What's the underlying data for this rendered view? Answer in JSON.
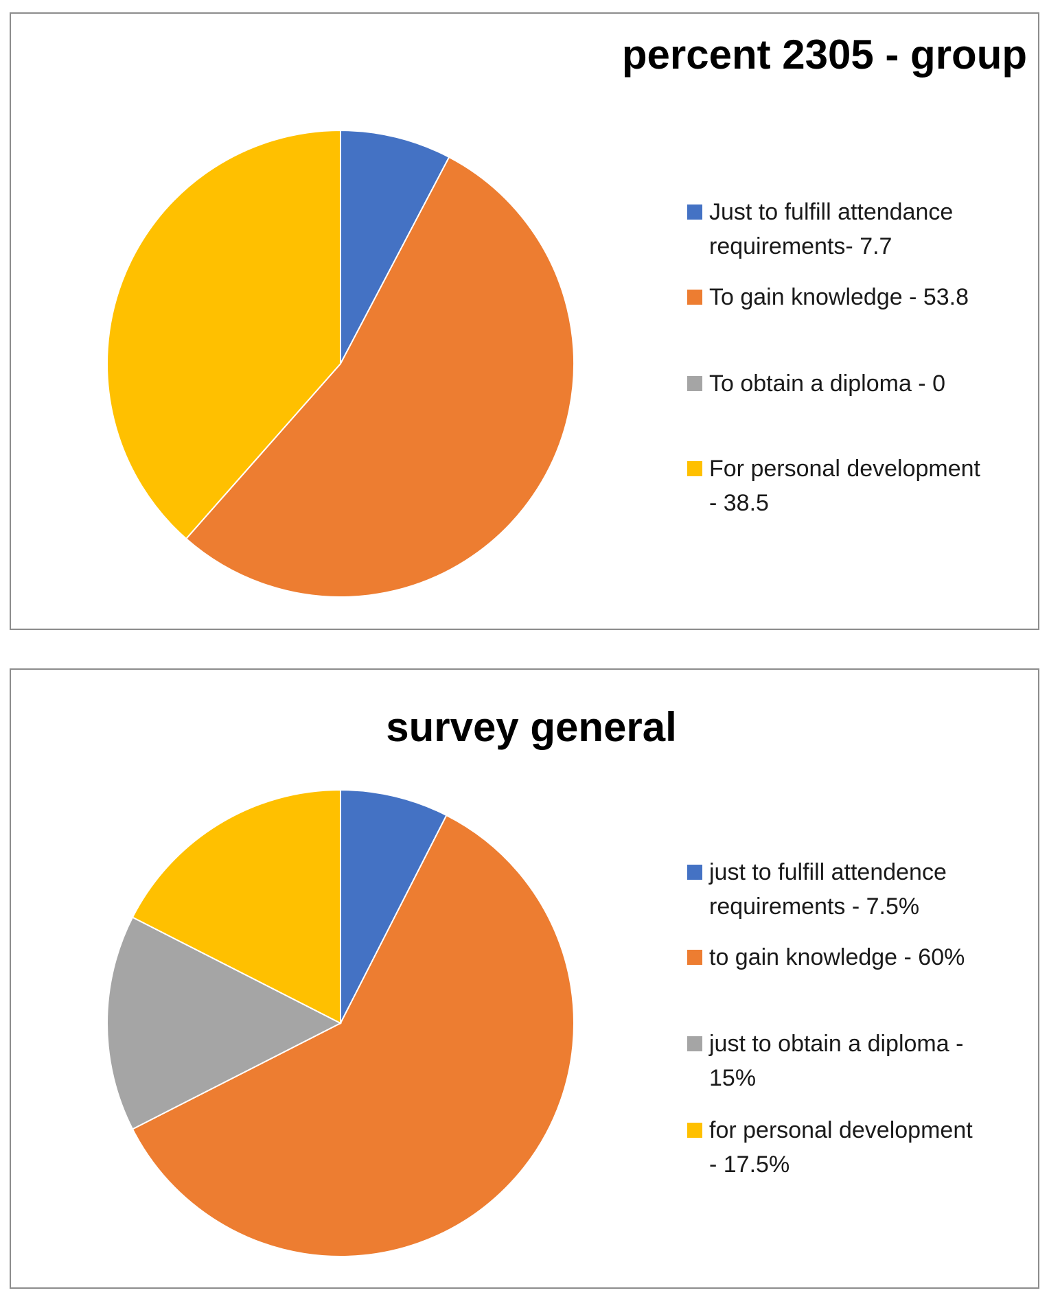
{
  "chart_data": [
    {
      "type": "pie",
      "title": "percent 2305 - group",
      "title_align": "right",
      "categories": [
        "Just to fulfill attendance requirements",
        "To gain knowledge",
        "To obtain a diploma",
        "For personal development"
      ],
      "values": [
        7.7,
        53.8,
        0,
        38.5
      ],
      "colors": [
        "#4472C4",
        "#ED7D31",
        "#A5A5A5",
        "#FFC000"
      ],
      "legend": {
        "position": "right",
        "entries": [
          [
            "Just to fulfill attendance",
            "requirements- 7.7"
          ],
          [
            "To gain knowledge - 53.8"
          ],
          [
            "To obtain a diploma - 0"
          ],
          [
            "For personal development",
            "- 38.5"
          ]
        ]
      }
    },
    {
      "type": "pie",
      "title": "survey general",
      "title_align": "center",
      "categories": [
        "just to fulfill attendence requirements",
        "to gain knowledge",
        "just to obtain a diploma",
        "for personal development"
      ],
      "values": [
        7.5,
        60,
        15,
        17.5
      ],
      "colors": [
        "#4472C4",
        "#ED7D31",
        "#A5A5A5",
        "#FFC000"
      ],
      "legend": {
        "position": "right",
        "entries": [
          [
            "just to fulfill attendence",
            "requirements - 7.5%"
          ],
          [
            "to gain knowledge - 60%"
          ],
          [
            "just to obtain a diploma -",
            "15%"
          ],
          [
            "for personal development",
            "- 17.5%"
          ]
        ]
      }
    }
  ]
}
